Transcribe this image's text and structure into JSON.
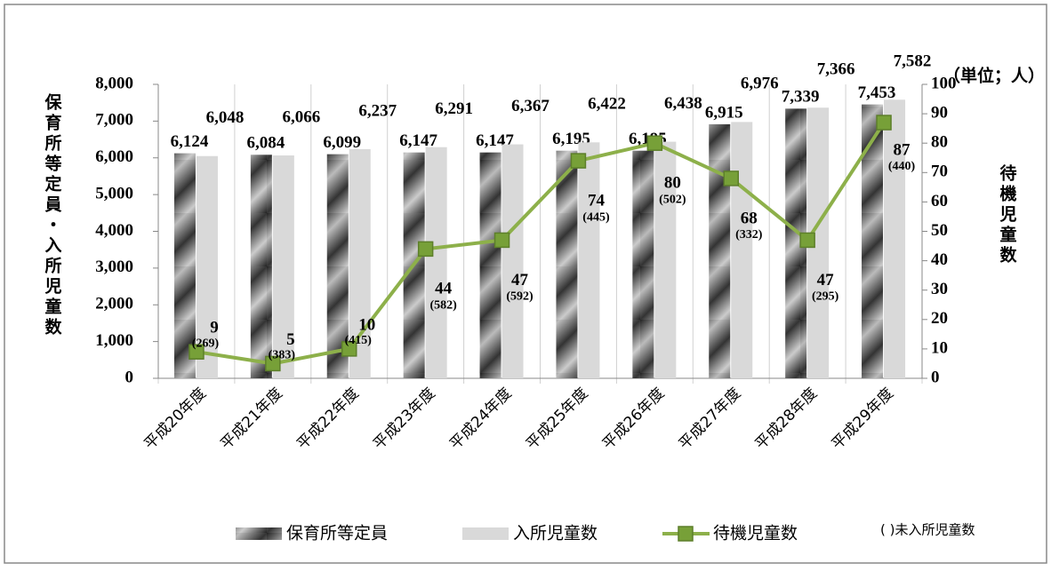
{
  "chart_data": {
    "type": "bar_line",
    "unit_label": "（単位；人）",
    "y_label": "保育所等定員・入所児童数",
    "y2_label": "待機児童数",
    "categories": [
      "平成20年度",
      "平成21年度",
      "平成22年度",
      "平成23年度",
      "平成24年度",
      "平成25年度",
      "平成26年度",
      "平成27年度",
      "平成28年度",
      "平成29年度"
    ],
    "series": [
      {
        "name": "保育所等定員",
        "color": "#555555",
        "type": "bar",
        "values": [
          6124,
          6084,
          6099,
          6147,
          6147,
          6195,
          6195,
          6915,
          7339,
          7453
        ],
        "value_labels": [
          "6,124",
          "6,084",
          "6,099",
          "6,147",
          "6,147",
          "6,195",
          "6,195",
          "6,915",
          "7,339",
          "7,453"
        ]
      },
      {
        "name": "入所児童数",
        "color": "#d9d9d9",
        "type": "bar",
        "values": [
          6048,
          6066,
          6237,
          6291,
          6367,
          6422,
          6438,
          6976,
          7366,
          7582
        ],
        "value_labels": [
          "6,048",
          "6,066",
          "6,237",
          "6,291",
          "6,367",
          "6,422",
          "6,438",
          "6,976",
          "7,366",
          "7,582"
        ]
      },
      {
        "name": "待機児童数",
        "color": "#8db04a",
        "type": "line",
        "axis": "y2",
        "values": [
          9,
          5,
          10,
          44,
          47,
          74,
          80,
          68,
          47,
          87
        ]
      }
    ],
    "unplaced": {
      "name": "( )未入所児童数",
      "values": [
        269,
        383,
        415,
        582,
        592,
        445,
        502,
        332,
        295,
        440
      ],
      "value_labels": [
        "(269)",
        "(383)",
        "(415)",
        "(582)",
        "(592)",
        "(445)",
        "(502)",
        "(332)",
        "(295)",
        "(440)"
      ]
    },
    "ylim": [
      0,
      8000
    ],
    "yticks": [
      0,
      {
        "value": 1000,
        "label": "1,000"
      },
      {
        "value": 2000,
        "label": "2,000"
      },
      {
        "value": 3000,
        "label": "3,000"
      },
      {
        "value": 4000,
        "label": "4,000"
      },
      {
        "value": 5000,
        "label": "5,000"
      },
      {
        "value": 6000,
        "label": "6,000"
      },
      {
        "value": 7000,
        "label": "7,000"
      },
      {
        "value": 8000,
        "label": "8,000"
      }
    ],
    "y2lim": [
      0,
      100
    ],
    "y2ticks": [
      0,
      10,
      20,
      30,
      40,
      50,
      60,
      70,
      80,
      90,
      100
    ]
  }
}
